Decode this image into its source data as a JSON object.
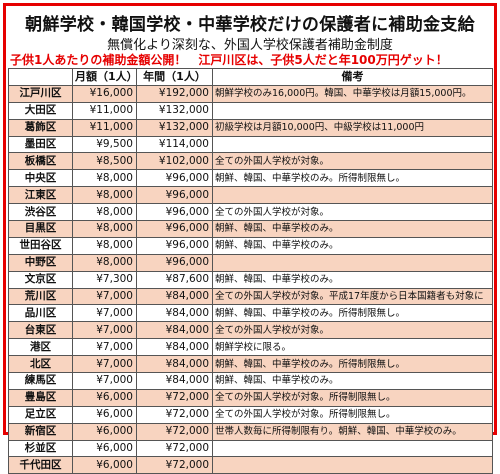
{
  "title": "朝鮮学校・韓国学校・中華学校だけの保護者に補助金支給",
  "subtitle": "無償化より深刻な、外国人学校保護者補助金制度",
  "red_left": "子供1人あたりの補助金額公開！",
  "red_right": "江戸川区は、子供5人だと年100万円ゲット！",
  "table": {
    "headers": [
      "",
      "月額（1人）",
      "年間（1人）",
      "備考"
    ],
    "rows": [
      {
        "ward": "江戸川区",
        "monthly": "¥16,000",
        "annual": "¥192,000",
        "note": "朝鮮学校のみ16,000円。韓国、中華学校は月額15,000円。"
      },
      {
        "ward": "大田区",
        "monthly": "¥11,000",
        "annual": "¥132,000",
        "note": ""
      },
      {
        "ward": "葛飾区",
        "monthly": "¥11,000",
        "annual": "¥132,000",
        "note": "初級学校は月額10,000円、中級学校は11,000円"
      },
      {
        "ward": "墨田区",
        "monthly": "¥9,500",
        "annual": "¥114,000",
        "note": ""
      },
      {
        "ward": "板橋区",
        "monthly": "¥8,500",
        "annual": "¥102,000",
        "note": "全ての外国人学校が対象。"
      },
      {
        "ward": "中央区",
        "monthly": "¥8,000",
        "annual": "¥96,000",
        "note": "朝鮮、韓国、中華学校のみ。所得制限無し。"
      },
      {
        "ward": "江東区",
        "monthly": "¥8,000",
        "annual": "¥96,000",
        "note": ""
      },
      {
        "ward": "渋谷区",
        "monthly": "¥8,000",
        "annual": "¥96,000",
        "note": "全ての外国人学校が対象。"
      },
      {
        "ward": "目黒区",
        "monthly": "¥8,000",
        "annual": "¥96,000",
        "note": "朝鮮、韓国、中華学校のみ。"
      },
      {
        "ward": "世田谷区",
        "monthly": "¥8,000",
        "annual": "¥96,000",
        "note": "朝鮮、韓国、中華学校のみ。"
      },
      {
        "ward": "中野区",
        "monthly": "¥8,000",
        "annual": "¥96,000",
        "note": ""
      },
      {
        "ward": "文京区",
        "monthly": "¥7,300",
        "annual": "¥87,600",
        "note": "朝鮮、韓国、中華学校のみ。"
      },
      {
        "ward": "荒川区",
        "monthly": "¥7,000",
        "annual": "¥84,000",
        "note": "全ての外国人学校が対象。平成17年度から日本国籍者も対象に"
      },
      {
        "ward": "品川区",
        "monthly": "¥7,000",
        "annual": "¥84,000",
        "note": "朝鮮、韓国、中華学校のみ。所得制限無し。"
      },
      {
        "ward": "台東区",
        "monthly": "¥7,000",
        "annual": "¥84,000",
        "note": "全ての外国人学校が対象。"
      },
      {
        "ward": "港区",
        "monthly": "¥7,000",
        "annual": "¥84,000",
        "note": "朝鮮学校に限る。"
      },
      {
        "ward": "北区",
        "monthly": "¥7,000",
        "annual": "¥84,000",
        "note": "朝鮮、韓国、中華学校のみ。所得制限無し。"
      },
      {
        "ward": "練馬区",
        "monthly": "¥7,000",
        "annual": "¥84,000",
        "note": "朝鮮、韓国、中華学校のみ。"
      },
      {
        "ward": "豊島区",
        "monthly": "¥6,000",
        "annual": "¥72,000",
        "note": "全ての外国人学校が対象。所得制限無し。"
      },
      {
        "ward": "足立区",
        "monthly": "¥6,000",
        "annual": "¥72,000",
        "note": "全ての外国人学校が対象。所得制限無し。"
      },
      {
        "ward": "新宿区",
        "monthly": "¥6,000",
        "annual": "¥72,000",
        "note": "世帯人数毎に所得制限有り。朝鮮、韓国、中華学校のみ。"
      },
      {
        "ward": "杉並区",
        "monthly": "¥6,000",
        "annual": "¥72,000",
        "note": ""
      },
      {
        "ward": "千代田区",
        "monthly": "¥6,000",
        "annual": "¥72,000",
        "note": ""
      }
    ]
  },
  "colors": {
    "border": "#e60000",
    "accent_text": "#e60000",
    "row_highlight": "#f8d4c0"
  }
}
